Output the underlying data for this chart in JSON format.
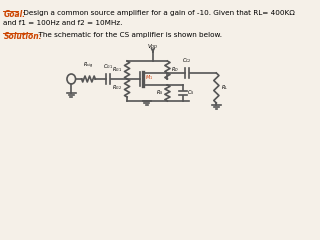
{
  "title_goal": "Goal:",
  "title_goal_color": "#cc4400",
  "goal_text": " Design a common source amplifier for a gain of -10. Given that RL= 400KΩ",
  "goal_text2": "and f1 = 100Hz and f2 = 10MHz.",
  "solution_label": "Solution:",
  "solution_label_color": "#cc4400",
  "solution_text": "  The schematic for the CS amplifier is shown below.",
  "bg_color": "#f5f0e8",
  "circuit_color": "#555555",
  "line_width": 1.2
}
